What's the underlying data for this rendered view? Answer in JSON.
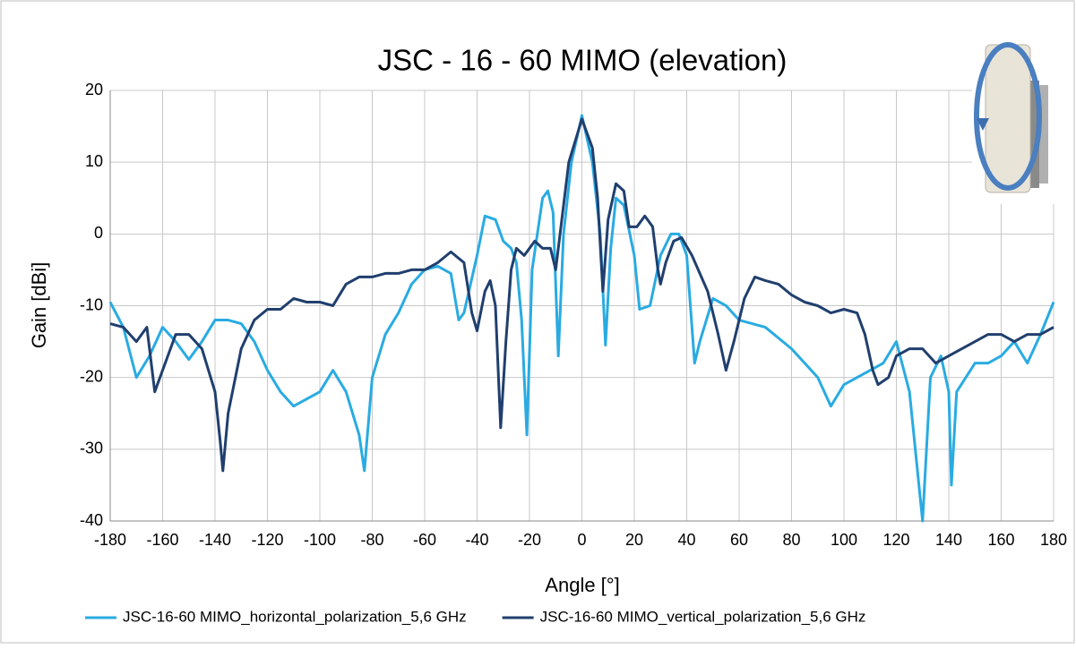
{
  "chart_data": {
    "type": "line",
    "title": "JSC - 16 - 60 MIMO (elevation)",
    "x_label": "Angle [°]",
    "y_label": "Gain [dBi]",
    "xlim": [
      -180,
      180
    ],
    "xticks": [
      -180,
      -160,
      -140,
      -120,
      -100,
      -80,
      -60,
      -40,
      -20,
      0,
      20,
      40,
      60,
      80,
      100,
      120,
      140,
      160,
      180
    ],
    "ylim": [
      -40,
      20
    ],
    "yticks": [
      -40,
      -30,
      -20,
      -10,
      0,
      10,
      20
    ],
    "grid": true,
    "legend": "bottom",
    "series": [
      {
        "name": "JSC-16-60 MIMO_horizontal_polarization_5,6 GHz",
        "color": "#29abe2",
        "x": [
          -180,
          -175,
          -170,
          -165,
          -160,
          -155,
          -150,
          -145,
          -140,
          -135,
          -130,
          -125,
          -120,
          -115,
          -110,
          -105,
          -100,
          -95,
          -90,
          -85,
          -83,
          -80,
          -75,
          -70,
          -65,
          -60,
          -55,
          -50,
          -47,
          -45,
          -40,
          -37,
          -33,
          -30,
          -27,
          -25,
          -23,
          -21,
          -19,
          -15,
          -13,
          -11,
          -9,
          -7,
          -4,
          0,
          4,
          7,
          9,
          11,
          13,
          16,
          20,
          22,
          26,
          30,
          34,
          37,
          40,
          43,
          45,
          50,
          55,
          60,
          70,
          80,
          90,
          95,
          100,
          105,
          110,
          115,
          120,
          125,
          130,
          133,
          137,
          140,
          141,
          143,
          150,
          155,
          160,
          165,
          170,
          175,
          180
        ],
        "values": [
          -9.5,
          -13,
          -20,
          -17,
          -13,
          -15,
          -17.5,
          -15,
          -12,
          -12,
          -12.5,
          -15,
          -19,
          -22,
          -24,
          -23,
          -22,
          -19,
          -22,
          -28,
          -33,
          -20,
          -14,
          -11,
          -7,
          -5,
          -4.5,
          -5.5,
          -12,
          -11,
          -3,
          2.5,
          2,
          -1,
          -2,
          -4,
          -12,
          -28,
          -5,
          5,
          6,
          3,
          -17,
          0,
          10,
          16.5,
          10,
          0,
          -15.5,
          -2,
          5,
          4,
          -3,
          -10.5,
          -10,
          -3,
          0,
          0,
          -3,
          -18,
          -15,
          -9,
          -10,
          -12,
          -13,
          -16,
          -20,
          -24,
          -21,
          -20,
          -19,
          -18,
          -15,
          -22,
          -40,
          -20,
          -17,
          -22,
          -35,
          -22,
          -18,
          -18,
          -17,
          -15,
          -18,
          -14,
          -9.5
        ]
      },
      {
        "name": "JSC-16-60 MIMO_vertical_polarization_5,6 GHz",
        "color": "#203f6e",
        "x": [
          -180,
          -175,
          -170,
          -166,
          -163,
          -160,
          -155,
          -150,
          -145,
          -140,
          -138,
          -137,
          -135,
          -130,
          -125,
          -120,
          -115,
          -110,
          -105,
          -100,
          -95,
          -90,
          -85,
          -80,
          -75,
          -70,
          -65,
          -60,
          -55,
          -50,
          -45,
          -42,
          -40,
          -37,
          -35,
          -33,
          -31,
          -29,
          -27,
          -25,
          -22,
          -18,
          -15,
          -12,
          -10,
          -8,
          -5,
          0,
          4,
          6,
          8,
          10,
          13,
          16,
          18,
          21,
          24,
          27,
          29,
          30,
          32,
          35,
          38,
          42,
          48,
          52,
          55,
          58,
          62,
          66,
          70,
          75,
          80,
          85,
          90,
          95,
          100,
          105,
          108,
          111,
          113,
          117,
          120,
          125,
          130,
          135,
          140,
          145,
          150,
          155,
          160,
          165,
          170,
          175,
          180
        ],
        "values": [
          -12.5,
          -13,
          -15,
          -13,
          -22,
          -19,
          -14,
          -14,
          -16,
          -22,
          -29,
          -33,
          -25,
          -16,
          -12,
          -10.5,
          -10.5,
          -9,
          -9.5,
          -9.5,
          -10,
          -7,
          -6,
          -6,
          -5.5,
          -5.5,
          -5,
          -5,
          -4,
          -2.5,
          -4,
          -11,
          -13.5,
          -8,
          -6.5,
          -10,
          -27,
          -15,
          -5,
          -2,
          -3,
          -1,
          -2,
          -2,
          -5,
          1,
          10,
          16,
          12,
          5,
          -8,
          2,
          7,
          6,
          1,
          1,
          2.5,
          1,
          -5,
          -7,
          -4,
          -1,
          -0.5,
          -3,
          -8,
          -14,
          -19,
          -15,
          -9,
          -6,
          -6.5,
          -7,
          -8.5,
          -9.5,
          -10,
          -11,
          -10.5,
          -11,
          -14,
          -19,
          -21,
          -20,
          -17,
          -16,
          -16,
          -18,
          -17,
          -16,
          -15,
          -14,
          -14,
          -15,
          -14,
          -14,
          -13
        ]
      }
    ]
  }
}
